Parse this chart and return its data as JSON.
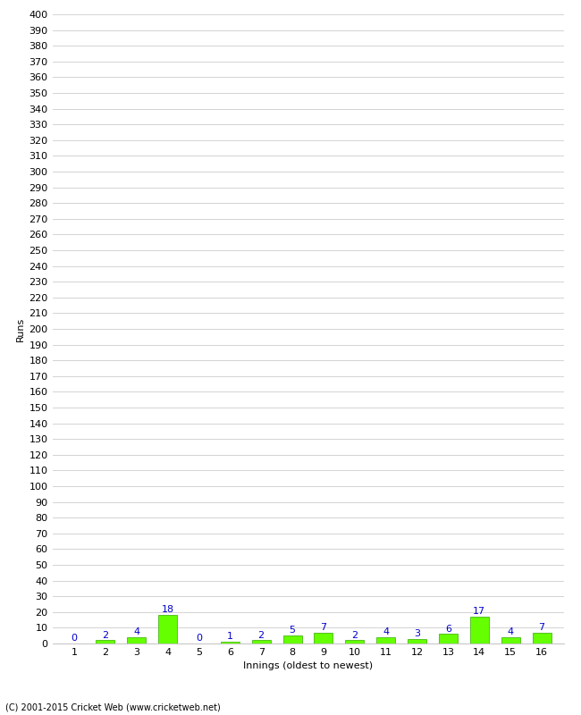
{
  "xlabel": "Innings (oldest to newest)",
  "ylabel": "Runs",
  "categories": [
    1,
    2,
    3,
    4,
    5,
    6,
    7,
    8,
    9,
    10,
    11,
    12,
    13,
    14,
    15,
    16
  ],
  "values": [
    0,
    2,
    4,
    18,
    0,
    1,
    2,
    5,
    7,
    2,
    4,
    3,
    6,
    17,
    4,
    7
  ],
  "bar_color": "#66ff00",
  "bar_edge_color": "#33aa00",
  "label_color": "#0000cc",
  "background_color": "#ffffff",
  "grid_color": "#cccccc",
  "ylim": [
    0,
    400
  ],
  "ytick_step": 10,
  "footer": "(C) 2001-2015 Cricket Web (www.cricketweb.net)"
}
